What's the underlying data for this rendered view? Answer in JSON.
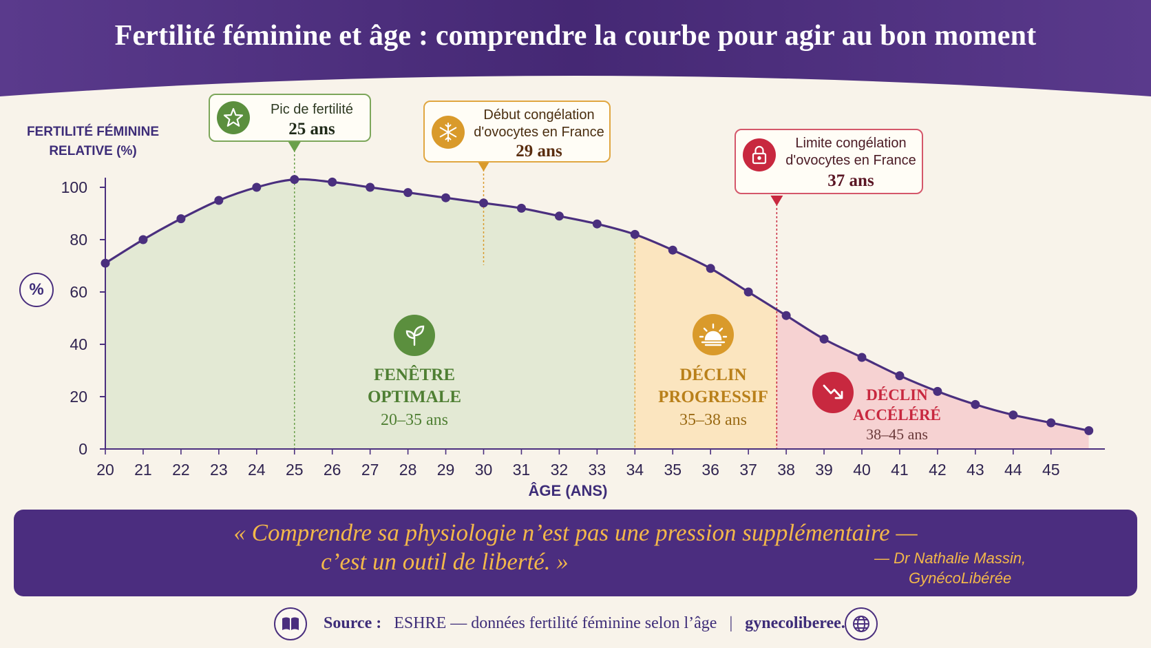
{
  "title": "Fertilité féminine et âge : comprendre la courbe pour agir au bon moment",
  "colors": {
    "header": "#4b2d7f",
    "line": "#4a2f7e",
    "optimal": "#5b8f3e",
    "progressive": "#c98a1b",
    "accelerated": "#c8283f",
    "quote": "#f3b84a"
  },
  "chart_data": {
    "type": "area",
    "title": "Fertilité féminine et âge : comprendre la courbe pour agir au bon moment",
    "xlabel": "ÂGE (ANS)",
    "ylabel": "FERTILITÉ FÉMININE RELATIVE (%)",
    "ylim": [
      0,
      100
    ],
    "yticks": [
      "0",
      "20",
      "40",
      "60",
      "80",
      "100"
    ],
    "xticks": [
      "20",
      "21",
      "22",
      "23",
      "24",
      "25",
      "26",
      "27",
      "28",
      "29",
      "30",
      "31",
      "32",
      "33",
      "34",
      "35",
      "36",
      "37",
      "38",
      "39",
      "40",
      "41",
      "42",
      "43",
      "44",
      "45"
    ],
    "grid": false,
    "series": [
      {
        "x": [
          20,
          21,
          22,
          23,
          24,
          25,
          26,
          27,
          28,
          29,
          30,
          31,
          32,
          33,
          34,
          35,
          36,
          37,
          38,
          39,
          40,
          41,
          42,
          43,
          44,
          45,
          46
        ],
        "values": [
          71,
          80,
          88,
          95,
          100,
          103,
          102,
          100,
          98,
          96,
          94,
          92,
          89,
          86,
          82,
          76,
          69,
          60,
          51,
          42,
          35,
          28,
          22,
          17,
          13,
          10,
          7
        ]
      }
    ],
    "zones": [
      {
        "title": "FENÊTRE OPTIMALE",
        "range": "20–35 ans",
        "from": 20,
        "to": 34,
        "color": "optimal"
      },
      {
        "title": "DÉCLIN PROGRESSIF",
        "range": "35–38 ans",
        "from": 34,
        "to": 37.75,
        "color": "progressive"
      },
      {
        "title": "DÉCLIN ACCÉLÉRÉ",
        "range": "38–45 ans",
        "from": 37.75,
        "to": 46,
        "color": "accelerated"
      }
    ],
    "annotations": [
      {
        "label": "Pic de fertilité",
        "value": "25 ans",
        "x": 25,
        "icon": "star-icon"
      },
      {
        "label": "Début congélation d'ovocytes en France",
        "value": "29 ans",
        "x": 30,
        "icon": "snowflake-icon"
      },
      {
        "label": "Limite congélation d'ovocytes en France",
        "value": "37 ans",
        "x": 37.75,
        "icon": "lock-icon"
      }
    ]
  },
  "ylabel_l1": "FERTILITÉ FÉMININE",
  "ylabel_l2": "RELATIVE (%)",
  "pct_badge": "%",
  "callouts": {
    "peak": {
      "line1": "Pic de fertilité",
      "line2": "25 ans"
    },
    "freeze_start": {
      "line1a": "Début congélation",
      "line1b": "d'ovocytes en France",
      "line2": "29 ans"
    },
    "freeze_limit": {
      "line1a": "Limite congélation",
      "line1b": "d'ovocytes en France",
      "line2": "37 ans"
    }
  },
  "zones": {
    "optimal": {
      "t1": "FENÊTRE",
      "t2": "OPTIMALE",
      "sub": "20–35 ans"
    },
    "progressive": {
      "t1": "DÉCLIN",
      "t2": "PROGRESSIF",
      "sub": "35–38 ans"
    },
    "accelerated": {
      "t1": "DÉCLIN",
      "t2": "ACCÉLÉRÉ",
      "sub": "38–45 ans"
    }
  },
  "quote": {
    "line1": "« Comprendre sa physiologie n’est pas une pression supplémentaire —",
    "line2": "c’est un outil de liberté. »",
    "author1": "— Dr Nathalie Massin,",
    "author2": "GynécoLibérée"
  },
  "footer": {
    "source_label": "Source :",
    "source_text": "ESHRE — données fertilité féminine selon l’âge",
    "separator": "|",
    "site": "gynecoliberee.fr"
  },
  "icons": [
    "star-icon",
    "snowflake-icon",
    "lock-icon",
    "sprout-icon",
    "sunrise-icon",
    "decline-arrow-icon",
    "book-icon",
    "globe-icon"
  ]
}
